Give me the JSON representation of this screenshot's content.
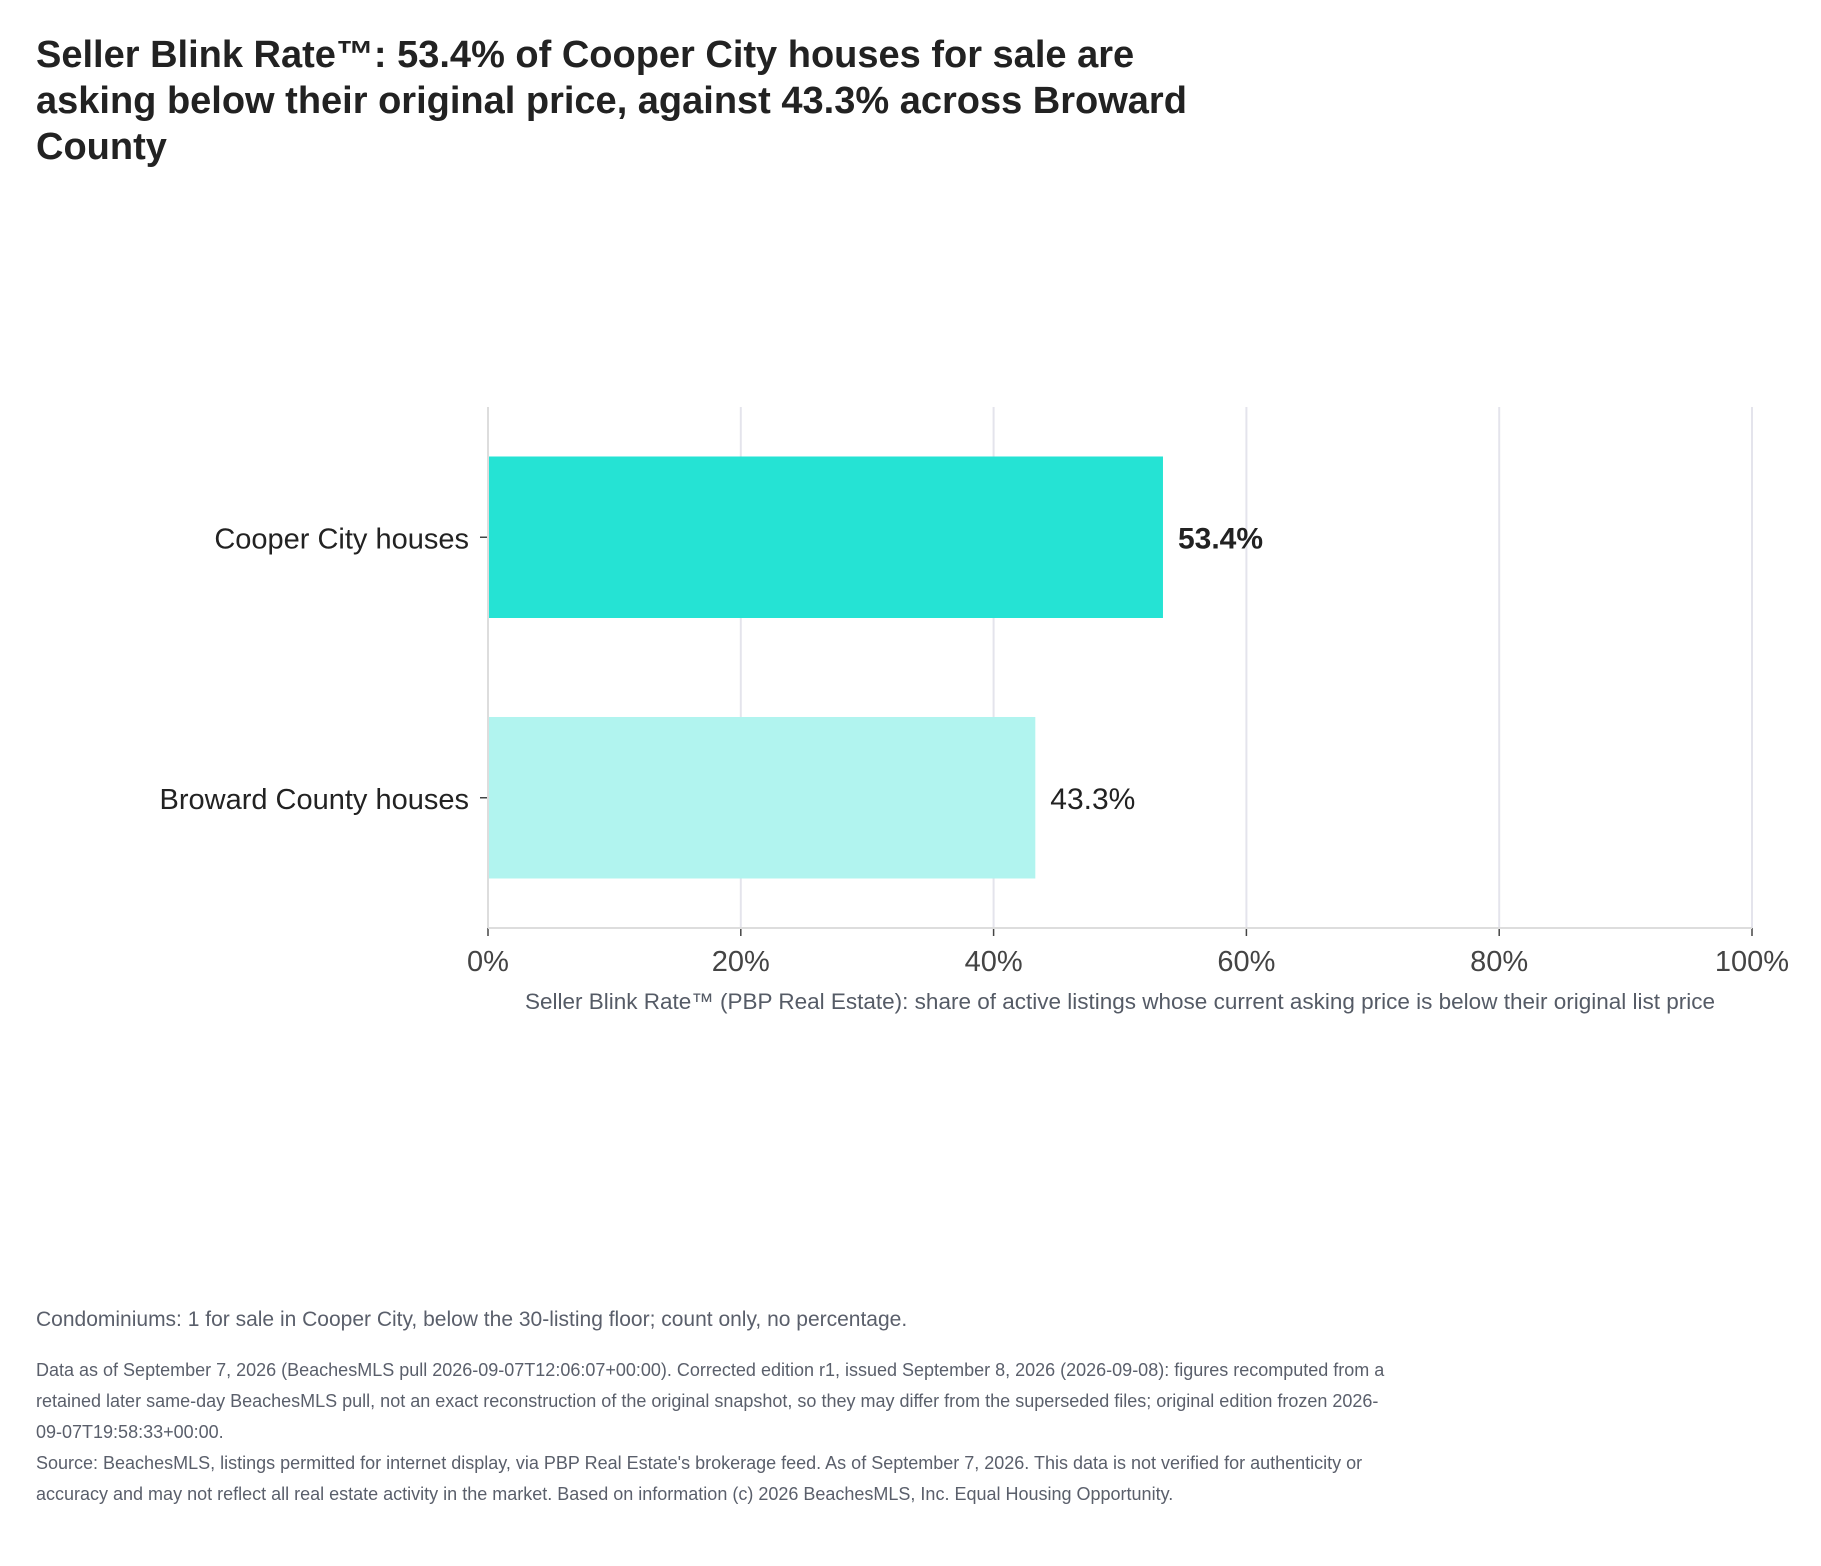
{
  "chart_data": {
    "type": "bar",
    "orientation": "horizontal",
    "title": "Seller Blink Rate™: 53.4% of Cooper City houses for sale are asking below their original price, against 43.3% across Broward County",
    "categories": [
      "Cooper City houses",
      "Broward County houses"
    ],
    "values": [
      53.4,
      43.3
    ],
    "data_labels": [
      "53.4%",
      "43.3%"
    ],
    "colors": [
      "#25e3d4",
      "#b1f4ef"
    ],
    "highlight_index": 0,
    "xlabel": "Seller Blink Rate™ (PBP Real Estate): share of active listings whose current asking price is below their original list price",
    "ylabel": "",
    "xlim": [
      0,
      100
    ],
    "xticks": [
      0,
      20,
      40,
      60,
      80,
      100
    ],
    "xtick_labels": [
      "0%",
      "20%",
      "40%",
      "60%",
      "80%",
      "100%"
    ],
    "grid": true,
    "legend": "none"
  },
  "notes": {
    "condo": "Condominiums: 1 for sale in Cooper City, below the 30-listing floor; count only, no percentage.",
    "data_asof": "Data as of September 7, 2026 (BeachesMLS pull 2026-09-07T12:06:07+00:00). Corrected edition r1, issued September 8, 2026 (2026-09-08): figures recomputed from a retained later same-day BeachesMLS pull, not an exact reconstruction of the original snapshot, so they may differ from the superseded files; original edition frozen 2026-09-07T19:58:33+00:00.",
    "source": "Source: BeachesMLS, listings permitted for internet display, via PBP Real Estate's brokerage feed. As of September 7, 2026. This data is not verified for authenticity or accuracy and may not reflect all real estate activity in the market. Based on information (c) 2026 BeachesMLS, Inc. Equal Housing Opportunity."
  }
}
